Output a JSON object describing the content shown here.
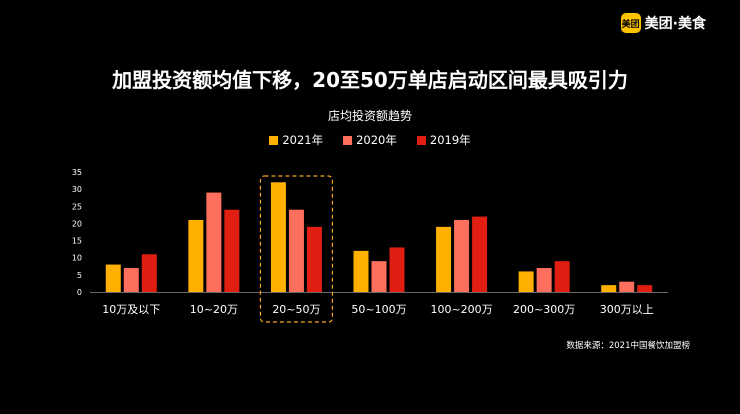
{
  "brand": {
    "badge_text": "美团",
    "name": "美团·美食",
    "accent": "#FFC300"
  },
  "headline": "加盟投资额均值下移，20至50万单店启动区间最具吸引力",
  "source": "数据来源：2021中国餐饮加盟榜",
  "chart_data": {
    "type": "bar",
    "title": "店均投资额趋势",
    "xlabel": "",
    "ylabel": "",
    "categories": [
      "10万及以下",
      "10~20万",
      "20~50万",
      "50~100万",
      "100~200万",
      "200~300万",
      "300万以上"
    ],
    "series": [
      {
        "name": "2021年",
        "color": "#FFB000",
        "values": [
          8,
          21,
          32,
          12,
          19,
          6,
          2
        ]
      },
      {
        "name": "2020年",
        "color": "#FF6F5E",
        "values": [
          7,
          29,
          24,
          9,
          21,
          7,
          3
        ]
      },
      {
        "name": "2019年",
        "color": "#E01E12",
        "values": [
          11,
          24,
          19,
          13,
          22,
          9,
          2
        ]
      }
    ],
    "ylim": [
      0,
      35
    ],
    "yticks": [
      0,
      5,
      10,
      15,
      20,
      25,
      30,
      35
    ],
    "grid": false,
    "legend_position": "top-center",
    "highlight_category": "20~50万",
    "highlight_color": "#F5A623"
  }
}
